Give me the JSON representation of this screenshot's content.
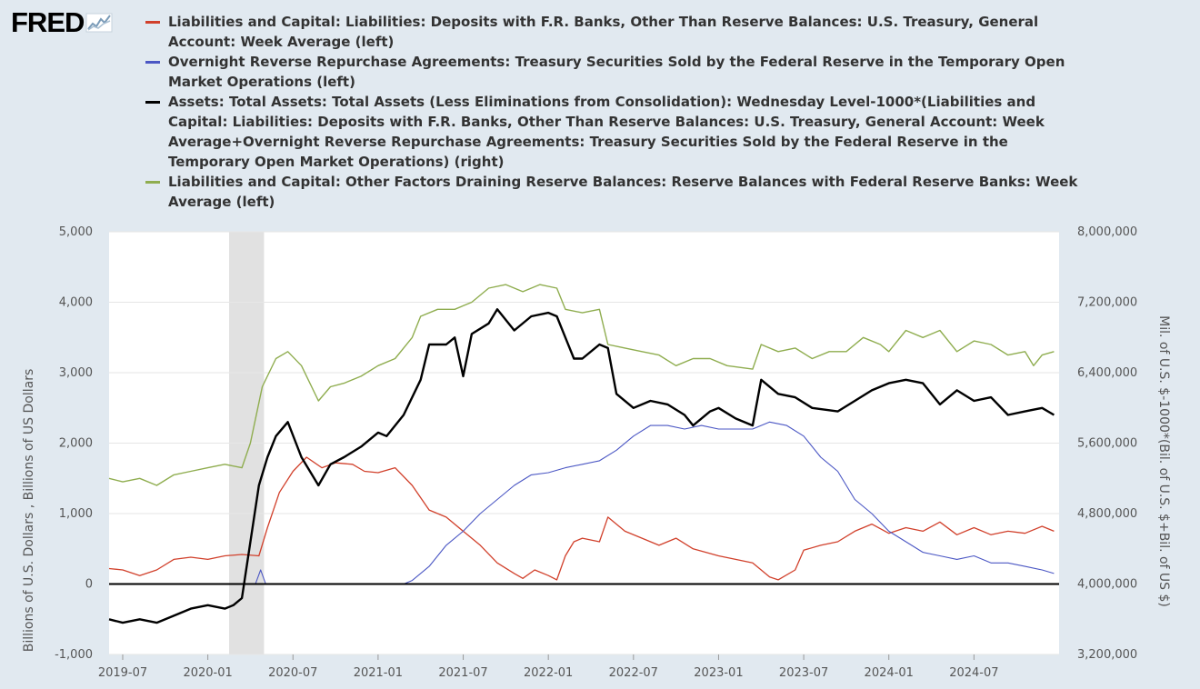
{
  "logo": {
    "text": "FRED"
  },
  "chart_data": {
    "type": "line",
    "title": "",
    "legend": [
      {
        "name": "Liabilities and Capital: Liabilities: Deposits with F.R. Banks, Other Than Reserve Balances: U.S. Treasury, General Account: Week Average (left)",
        "color": "#d1402b"
      },
      {
        "name": "Overnight Reverse Repurchase Agreements: Treasury Securities Sold by the Federal Reserve in the Temporary Open Market Operations (left)",
        "color": "#4b57c4"
      },
      {
        "name": "Assets: Total Assets: Total Assets (Less Eliminations from Consolidation): Wednesday Level-1000*(Liabilities and Capital: Liabilities: Deposits with F.R. Banks, Other Than Reserve Balances: U.S. Treasury, General Account: Week Average+Overnight Reverse Repurchase Agreements: Treasury Securities Sold by the Federal Reserve in the Temporary Open Market Operations) (right)",
        "color": "#000000"
      },
      {
        "name": "Liabilities and Capital: Other Factors Draining Reserve Balances: Reserve Balances with Federal Reserve Banks: Week Average (left)",
        "color": "#8fad4f"
      }
    ],
    "legend_placement": "top",
    "ylabel_left": "Billions of U.S. Dollars , Billions of US Dollars",
    "ylabel_right": "Mil. of U.S. $-1000*(Bil. of U.S. $+Bil. of US $)",
    "ylim_left": [
      -1000,
      5000
    ],
    "ylim_right": [
      3200000,
      8000000
    ],
    "yticks_left": [
      "5,000",
      "4,000",
      "3,000",
      "2,000",
      "1,000",
      "0",
      "-1,000"
    ],
    "yticks_left_values": [
      5000,
      4000,
      3000,
      2000,
      1000,
      0,
      -1000
    ],
    "yticks_right": [
      "8,000,000",
      "7,200,000",
      "6,400,000",
      "5,600,000",
      "4,800,000",
      "4,000,000",
      "3,200,000"
    ],
    "yticks_right_values": [
      8000000,
      7200000,
      6400000,
      5600000,
      4800000,
      4000000,
      3200000
    ],
    "xlim": [
      2019.42,
      2025.0
    ],
    "xticks": [
      "2019-07",
      "2020-01",
      "2020-07",
      "2021-01",
      "2021-07",
      "2022-01",
      "2022-07",
      "2023-01",
      "2023-07",
      "2024-01",
      "2024-07"
    ],
    "xticks_values": [
      2019.5,
      2020.0,
      2020.5,
      2021.0,
      2021.5,
      2022.0,
      2022.5,
      2023.0,
      2023.5,
      2024.0,
      2024.5
    ],
    "recession": [
      2020.125,
      2020.33
    ],
    "grid": true,
    "series": [
      {
        "color": "#d1402b",
        "width": 1.3,
        "axis": "left",
        "points": [
          [
            2019.42,
            220
          ],
          [
            2019.5,
            200
          ],
          [
            2019.6,
            120
          ],
          [
            2019.7,
            200
          ],
          [
            2019.8,
            350
          ],
          [
            2019.9,
            380
          ],
          [
            2020.0,
            350
          ],
          [
            2020.1,
            400
          ],
          [
            2020.2,
            420
          ],
          [
            2020.3,
            400
          ],
          [
            2020.35,
            800
          ],
          [
            2020.42,
            1300
          ],
          [
            2020.5,
            1600
          ],
          [
            2020.58,
            1800
          ],
          [
            2020.67,
            1650
          ],
          [
            2020.75,
            1720
          ],
          [
            2020.85,
            1700
          ],
          [
            2020.92,
            1600
          ],
          [
            2021.0,
            1580
          ],
          [
            2021.1,
            1650
          ],
          [
            2021.2,
            1400
          ],
          [
            2021.3,
            1050
          ],
          [
            2021.4,
            950
          ],
          [
            2021.5,
            750
          ],
          [
            2021.6,
            550
          ],
          [
            2021.7,
            300
          ],
          [
            2021.8,
            150
          ],
          [
            2021.85,
            80
          ],
          [
            2021.92,
            200
          ],
          [
            2022.0,
            120
          ],
          [
            2022.05,
            60
          ],
          [
            2022.1,
            400
          ],
          [
            2022.15,
            600
          ],
          [
            2022.2,
            650
          ],
          [
            2022.3,
            600
          ],
          [
            2022.35,
            950
          ],
          [
            2022.45,
            750
          ],
          [
            2022.55,
            650
          ],
          [
            2022.65,
            550
          ],
          [
            2022.75,
            650
          ],
          [
            2022.85,
            500
          ],
          [
            2023.0,
            400
          ],
          [
            2023.1,
            350
          ],
          [
            2023.2,
            300
          ],
          [
            2023.3,
            100
          ],
          [
            2023.35,
            60
          ],
          [
            2023.45,
            200
          ],
          [
            2023.5,
            480
          ],
          [
            2023.6,
            550
          ],
          [
            2023.7,
            600
          ],
          [
            2023.8,
            750
          ],
          [
            2023.9,
            850
          ],
          [
            2024.0,
            720
          ],
          [
            2024.1,
            800
          ],
          [
            2024.2,
            750
          ],
          [
            2024.3,
            880
          ],
          [
            2024.4,
            700
          ],
          [
            2024.5,
            800
          ],
          [
            2024.6,
            700
          ],
          [
            2024.7,
            750
          ],
          [
            2024.8,
            720
          ],
          [
            2024.9,
            820
          ],
          [
            2024.97,
            750
          ]
        ]
      },
      {
        "color": "#4b57c4",
        "width": 1.1,
        "axis": "left",
        "points": [
          [
            2019.42,
            0
          ],
          [
            2020.2,
            0
          ],
          [
            2020.28,
            5
          ],
          [
            2020.31,
            200
          ],
          [
            2020.34,
            0
          ],
          [
            2021.15,
            0
          ],
          [
            2021.2,
            50
          ],
          [
            2021.3,
            250
          ],
          [
            2021.4,
            550
          ],
          [
            2021.5,
            750
          ],
          [
            2021.6,
            1000
          ],
          [
            2021.7,
            1200
          ],
          [
            2021.8,
            1400
          ],
          [
            2021.9,
            1550
          ],
          [
            2022.0,
            1580
          ],
          [
            2022.1,
            1650
          ],
          [
            2022.2,
            1700
          ],
          [
            2022.3,
            1750
          ],
          [
            2022.4,
            1900
          ],
          [
            2022.5,
            2100
          ],
          [
            2022.6,
            2250
          ],
          [
            2022.7,
            2250
          ],
          [
            2022.8,
            2200
          ],
          [
            2022.9,
            2250
          ],
          [
            2023.0,
            2200
          ],
          [
            2023.1,
            2200
          ],
          [
            2023.2,
            2200
          ],
          [
            2023.3,
            2300
          ],
          [
            2023.4,
            2250
          ],
          [
            2023.5,
            2100
          ],
          [
            2023.6,
            1800
          ],
          [
            2023.7,
            1600
          ],
          [
            2023.8,
            1200
          ],
          [
            2023.9,
            1000
          ],
          [
            2024.0,
            750
          ],
          [
            2024.1,
            600
          ],
          [
            2024.2,
            450
          ],
          [
            2024.3,
            400
          ],
          [
            2024.4,
            350
          ],
          [
            2024.5,
            400
          ],
          [
            2024.6,
            300
          ],
          [
            2024.7,
            300
          ],
          [
            2024.8,
            250
          ],
          [
            2024.9,
            200
          ],
          [
            2024.97,
            150
          ]
        ]
      },
      {
        "color": "#000000",
        "width": 2.4,
        "axis": "left",
        "points": [
          [
            2019.42,
            -500
          ],
          [
            2019.5,
            -550
          ],
          [
            2019.6,
            -500
          ],
          [
            2019.7,
            -550
          ],
          [
            2019.8,
            -450
          ],
          [
            2019.9,
            -350
          ],
          [
            2020.0,
            -300
          ],
          [
            2020.1,
            -350
          ],
          [
            2020.15,
            -300
          ],
          [
            2020.2,
            -200
          ],
          [
            2020.3,
            1400
          ],
          [
            2020.35,
            1800
          ],
          [
            2020.4,
            2100
          ],
          [
            2020.47,
            2300
          ],
          [
            2020.55,
            1800
          ],
          [
            2020.65,
            1400
          ],
          [
            2020.72,
            1700
          ],
          [
            2020.8,
            1800
          ],
          [
            2020.9,
            1950
          ],
          [
            2021.0,
            2150
          ],
          [
            2021.05,
            2100
          ],
          [
            2021.15,
            2400
          ],
          [
            2021.25,
            2900
          ],
          [
            2021.3,
            3400
          ],
          [
            2021.4,
            3400
          ],
          [
            2021.45,
            3500
          ],
          [
            2021.5,
            2950
          ],
          [
            2021.55,
            3550
          ],
          [
            2021.65,
            3700
          ],
          [
            2021.7,
            3900
          ],
          [
            2021.8,
            3600
          ],
          [
            2021.9,
            3800
          ],
          [
            2022.0,
            3850
          ],
          [
            2022.05,
            3800
          ],
          [
            2022.1,
            3500
          ],
          [
            2022.15,
            3200
          ],
          [
            2022.2,
            3200
          ],
          [
            2022.3,
            3400
          ],
          [
            2022.35,
            3350
          ],
          [
            2022.4,
            2700
          ],
          [
            2022.5,
            2500
          ],
          [
            2022.6,
            2600
          ],
          [
            2022.7,
            2550
          ],
          [
            2022.8,
            2400
          ],
          [
            2022.85,
            2250
          ],
          [
            2022.95,
            2450
          ],
          [
            2023.0,
            2500
          ],
          [
            2023.1,
            2350
          ],
          [
            2023.2,
            2250
          ],
          [
            2023.25,
            2900
          ],
          [
            2023.35,
            2700
          ],
          [
            2023.45,
            2650
          ],
          [
            2023.55,
            2500
          ],
          [
            2023.7,
            2450
          ],
          [
            2023.8,
            2600
          ],
          [
            2023.9,
            2750
          ],
          [
            2024.0,
            2850
          ],
          [
            2024.1,
            2900
          ],
          [
            2024.2,
            2850
          ],
          [
            2024.3,
            2550
          ],
          [
            2024.4,
            2750
          ],
          [
            2024.5,
            2600
          ],
          [
            2024.6,
            2650
          ],
          [
            2024.7,
            2400
          ],
          [
            2024.8,
            2450
          ],
          [
            2024.9,
            2500
          ],
          [
            2024.97,
            2400
          ]
        ]
      },
      {
        "color": "#8fad4f",
        "width": 1.4,
        "axis": "left",
        "points": [
          [
            2019.42,
            1500
          ],
          [
            2019.5,
            1450
          ],
          [
            2019.6,
            1500
          ],
          [
            2019.7,
            1400
          ],
          [
            2019.8,
            1550
          ],
          [
            2019.9,
            1600
          ],
          [
            2020.0,
            1650
          ],
          [
            2020.1,
            1700
          ],
          [
            2020.2,
            1650
          ],
          [
            2020.25,
            2000
          ],
          [
            2020.32,
            2800
          ],
          [
            2020.4,
            3200
          ],
          [
            2020.47,
            3300
          ],
          [
            2020.55,
            3100
          ],
          [
            2020.65,
            2600
          ],
          [
            2020.72,
            2800
          ],
          [
            2020.8,
            2850
          ],
          [
            2020.9,
            2950
          ],
          [
            2021.0,
            3100
          ],
          [
            2021.1,
            3200
          ],
          [
            2021.2,
            3500
          ],
          [
            2021.25,
            3800
          ],
          [
            2021.35,
            3900
          ],
          [
            2021.45,
            3900
          ],
          [
            2021.55,
            4000
          ],
          [
            2021.65,
            4200
          ],
          [
            2021.75,
            4250
          ],
          [
            2021.85,
            4150
          ],
          [
            2021.95,
            4250
          ],
          [
            2022.05,
            4200
          ],
          [
            2022.1,
            3900
          ],
          [
            2022.2,
            3850
          ],
          [
            2022.3,
            3900
          ],
          [
            2022.35,
            3400
          ],
          [
            2022.45,
            3350
          ],
          [
            2022.55,
            3300
          ],
          [
            2022.65,
            3250
          ],
          [
            2022.75,
            3100
          ],
          [
            2022.85,
            3200
          ],
          [
            2022.95,
            3200
          ],
          [
            2023.05,
            3100
          ],
          [
            2023.2,
            3050
          ],
          [
            2023.25,
            3400
          ],
          [
            2023.35,
            3300
          ],
          [
            2023.45,
            3350
          ],
          [
            2023.55,
            3200
          ],
          [
            2023.65,
            3300
          ],
          [
            2023.75,
            3300
          ],
          [
            2023.85,
            3500
          ],
          [
            2023.95,
            3400
          ],
          [
            2024.0,
            3300
          ],
          [
            2024.1,
            3600
          ],
          [
            2024.2,
            3500
          ],
          [
            2024.3,
            3600
          ],
          [
            2024.4,
            3300
          ],
          [
            2024.5,
            3450
          ],
          [
            2024.6,
            3400
          ],
          [
            2024.7,
            3250
          ],
          [
            2024.8,
            3300
          ],
          [
            2024.85,
            3100
          ],
          [
            2024.9,
            3250
          ],
          [
            2024.97,
            3300
          ]
        ]
      }
    ]
  }
}
